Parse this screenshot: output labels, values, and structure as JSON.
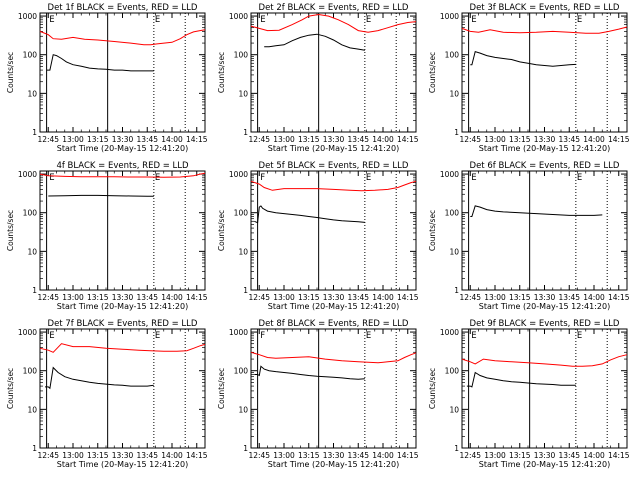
{
  "chart_data": [
    {
      "type": "line",
      "title": "Det 1f BLACK = Events, RED = LLD",
      "xlabel": "Start Time (20-May-15 12:41:20)",
      "ylabel": "Counts/sec",
      "x_ticks": [
        "12:45",
        "13:00",
        "13:15",
        "13:30",
        "13:45",
        "14:00",
        "14:15"
      ],
      "y_ticks": [
        "1",
        "10",
        "100",
        "1000"
      ],
      "yscale": "log",
      "xlim": [
        -5,
        95
      ],
      "ylim": [
        1,
        1200
      ],
      "markers": {
        "solid": [
          -1,
          36
        ],
        "dotted": [
          64,
          83
        ],
        "flags": [
          {
            "x": 0,
            "label": "E"
          },
          {
            "x": 64,
            "label": "E"
          }
        ]
      },
      "series": [
        {
          "color": "#ff0000",
          "x": [
            -5,
            0,
            3,
            8,
            15,
            22,
            30,
            40,
            50,
            58,
            62,
            66,
            75,
            80,
            84,
            88,
            92,
            95
          ],
          "y": [
            400,
            330,
            260,
            250,
            280,
            250,
            240,
            220,
            200,
            180,
            180,
            190,
            210,
            260,
            330,
            390,
            420,
            440
          ]
        },
        {
          "color": "#000000",
          "x": [
            -1,
            1,
            3,
            5,
            8,
            11,
            15,
            20,
            25,
            30,
            35,
            40,
            45,
            50,
            55,
            60,
            64
          ],
          "y": [
            40,
            40,
            100,
            95,
            80,
            65,
            55,
            50,
            45,
            43,
            42,
            40,
            40,
            38,
            38,
            38,
            38
          ]
        }
      ]
    },
    {
      "type": "line",
      "title": "Det 2f BLACK = Events, RED = LLD",
      "xlabel": "Start Time (20-May-15 12:41:20)",
      "ylabel": "Counts/sec",
      "x_ticks": [
        "12:45",
        "13:00",
        "13:15",
        "13:30",
        "13:45",
        "14:00",
        "14:15"
      ],
      "y_ticks": [
        "1",
        "10",
        "100",
        "1000"
      ],
      "yscale": "log",
      "xlim": [
        -5,
        95
      ],
      "ylim": [
        1,
        1200
      ],
      "markers": {
        "solid": [
          -1,
          36
        ],
        "dotted": [
          64,
          83
        ],
        "flags": [
          {
            "x": 0,
            "label": "E"
          },
          {
            "x": 64,
            "label": "E"
          }
        ]
      },
      "series": [
        {
          "color": "#ff0000",
          "x": [
            -5,
            0,
            5,
            12,
            20,
            26,
            30,
            36,
            42,
            48,
            54,
            60,
            66,
            72,
            78,
            84,
            90,
            95
          ],
          "y": [
            550,
            480,
            420,
            430,
            600,
            800,
            1000,
            1100,
            1000,
            800,
            600,
            420,
            380,
            420,
            500,
            600,
            680,
            720
          ]
        },
        {
          "color": "#000000",
          "x": [
            3,
            6,
            10,
            15,
            20,
            25,
            30,
            35,
            40,
            45,
            50,
            55,
            60,
            64
          ],
          "y": [
            160,
            160,
            170,
            180,
            230,
            280,
            320,
            340,
            300,
            240,
            180,
            150,
            140,
            130
          ]
        }
      ]
    },
    {
      "type": "line",
      "title": "Det 3f BLACK = Events, RED = LLD",
      "xlabel": "Start Time (20-May-15 12:41:20)",
      "ylabel": "Counts/sec",
      "x_ticks": [
        "12:45",
        "13:00",
        "13:15",
        "13:30",
        "13:45",
        "14:00",
        "14:15"
      ],
      "y_ticks": [
        "1",
        "10",
        "100",
        "1000"
      ],
      "yscale": "log",
      "xlim": [
        -5,
        95
      ],
      "ylim": [
        1,
        1200
      ],
      "markers": {
        "solid": [
          -1,
          36
        ],
        "dotted": [
          64,
          83
        ],
        "flags": [
          {
            "x": 0,
            "label": "E"
          },
          {
            "x": 64,
            "label": "E"
          }
        ]
      },
      "series": [
        {
          "color": "#ff0000",
          "x": [
            -5,
            0,
            5,
            12,
            20,
            30,
            40,
            50,
            60,
            70,
            78,
            84,
            90,
            95
          ],
          "y": [
            480,
            400,
            380,
            440,
            380,
            370,
            380,
            400,
            380,
            360,
            360,
            400,
            460,
            520
          ]
        },
        {
          "color": "#000000",
          "x": [
            0,
            1,
            3,
            6,
            10,
            15,
            20,
            25,
            30,
            35,
            40,
            50,
            60,
            64
          ],
          "y": [
            55,
            55,
            120,
            110,
            95,
            85,
            80,
            75,
            65,
            60,
            55,
            50,
            55,
            56
          ]
        }
      ]
    },
    {
      "type": "line",
      "title": "4f BLACK = Events, RED = LLD",
      "xlabel": "Start Time (20-May-15 12:41:20)",
      "ylabel": "Counts/sec",
      "x_ticks": [
        "12:45",
        "13:00",
        "13:15",
        "13:30",
        "13:45",
        "14:00",
        "14:15"
      ],
      "y_ticks": [
        "1",
        "10",
        "100",
        "1000"
      ],
      "yscale": "log",
      "xlim": [
        -5,
        95
      ],
      "ylim": [
        1,
        1200
      ],
      "markers": {
        "solid": [
          -1,
          36
        ],
        "dotted": [
          64,
          83
        ],
        "flags": [
          {
            "x": 0,
            "label": "E"
          },
          {
            "x": 64,
            "label": "E"
          }
        ]
      },
      "series": [
        {
          "color": "#ff0000",
          "x": [
            -5,
            0,
            10,
            20,
            30,
            40,
            50,
            60,
            70,
            80,
            88,
            92,
            95
          ],
          "y": [
            1000,
            900,
            870,
            850,
            850,
            850,
            840,
            840,
            830,
            840,
            900,
            1000,
            1050
          ]
        },
        {
          "color": "#000000",
          "x": [
            0,
            10,
            20,
            30,
            40,
            50,
            60,
            64
          ],
          "y": [
            270,
            275,
            280,
            280,
            275,
            270,
            265,
            265
          ]
        }
      ]
    },
    {
      "type": "line",
      "title": "Det 5f BLACK = Events, RED = LLD",
      "xlabel": "Start Time (20-May-15 12:41:20)",
      "ylabel": "Counts/sec",
      "x_ticks": [
        "12:45",
        "13:00",
        "13:15",
        "13:30",
        "13:45",
        "14:00",
        "14:15"
      ],
      "y_ticks": [
        "1",
        "10",
        "100",
        "1000"
      ],
      "yscale": "log",
      "xlim": [
        -5,
        95
      ],
      "ylim": [
        1,
        1200
      ],
      "markers": {
        "solid": [
          -1,
          36
        ],
        "dotted": [
          64,
          83
        ],
        "flags": [
          {
            "x": 0,
            "label": "F"
          },
          {
            "x": 64,
            "label": "E"
          }
        ]
      },
      "series": [
        {
          "color": "#ff0000",
          "x": [
            -5,
            0,
            3,
            8,
            15,
            25,
            35,
            45,
            55,
            62,
            70,
            78,
            84,
            88,
            92,
            95
          ],
          "y": [
            650,
            550,
            450,
            380,
            420,
            420,
            420,
            400,
            380,
            370,
            380,
            400,
            450,
            520,
            600,
            650
          ]
        },
        {
          "color": "#000000",
          "x": [
            -3,
            -1,
            0,
            1,
            2,
            5,
            10,
            15,
            20,
            25,
            30,
            35,
            40,
            45,
            50,
            55,
            60,
            64
          ],
          "y": [
            60,
            55,
            140,
            150,
            130,
            110,
            100,
            95,
            90,
            85,
            80,
            75,
            70,
            65,
            62,
            60,
            58,
            56
          ]
        }
      ]
    },
    {
      "type": "line",
      "title": "Det 6f BLACK = Events, RED = LLD",
      "xlabel": "Start Time (20-May-15 12:41:20)",
      "ylabel": "Counts/sec",
      "x_ticks": [
        "12:45",
        "13:00",
        "13:15",
        "13:30",
        "13:45",
        "14:00",
        "14:15"
      ],
      "y_ticks": [
        "1",
        "10",
        "100",
        "1000"
      ],
      "yscale": "log",
      "xlim": [
        -5,
        95
      ],
      "ylim": [
        1,
        1200
      ],
      "markers": {
        "solid": [
          -1,
          36
        ],
        "dotted": [
          64,
          83
        ],
        "flags": [
          {
            "x": 0,
            "label": "E"
          },
          {
            "x": 64,
            "label": "E"
          }
        ]
      },
      "series": [
        {
          "color": "#000000",
          "x": [
            0,
            1,
            3,
            6,
            10,
            15,
            20,
            30,
            40,
            50,
            60,
            66,
            70,
            75,
            80
          ],
          "y": [
            80,
            80,
            150,
            140,
            120,
            110,
            105,
            100,
            95,
            90,
            85,
            85,
            85,
            85,
            88
          ]
        }
      ]
    },
    {
      "type": "line",
      "title": "Det 7f BLACK = Events, RED = LLD",
      "xlabel": "Start Time (20-May-15 12:41:20)",
      "ylabel": "Counts/sec",
      "x_ticks": [
        "12:45",
        "13:00",
        "13:15",
        "13:30",
        "13:45",
        "14:00",
        "14:15"
      ],
      "y_ticks": [
        "1",
        "10",
        "100",
        "1000"
      ],
      "yscale": "log",
      "xlim": [
        -5,
        95
      ],
      "ylim": [
        1,
        1200
      ],
      "markers": {
        "solid": [
          -1,
          36
        ],
        "dotted": [
          64,
          83
        ],
        "flags": [
          {
            "x": 0,
            "label": "E"
          },
          {
            "x": 64,
            "label": "E"
          }
        ]
      },
      "series": [
        {
          "color": "#ff0000",
          "x": [
            -5,
            0,
            3,
            8,
            15,
            25,
            35,
            45,
            55,
            62,
            70,
            78,
            84,
            88,
            92,
            95
          ],
          "y": [
            380,
            340,
            300,
            500,
            420,
            420,
            380,
            360,
            340,
            330,
            320,
            320,
            330,
            380,
            440,
            480
          ]
        },
        {
          "color": "#000000",
          "x": [
            -2,
            0,
            1,
            3,
            6,
            10,
            15,
            20,
            25,
            30,
            35,
            40,
            45,
            50,
            55,
            60,
            64
          ],
          "y": [
            38,
            38,
            35,
            120,
            90,
            70,
            60,
            55,
            50,
            47,
            45,
            43,
            42,
            40,
            40,
            40,
            42
          ]
        }
      ]
    },
    {
      "type": "line",
      "title": "Det 8f BLACK = Events, RED = LLD",
      "xlabel": "Start Time (20-May-15 12:41:20)",
      "ylabel": "Counts/sec",
      "x_ticks": [
        "12:45",
        "13:00",
        "13:15",
        "13:30",
        "13:45",
        "14:00",
        "14:15"
      ],
      "y_ticks": [
        "1",
        "10",
        "100",
        "1000"
      ],
      "yscale": "log",
      "xlim": [
        -5,
        95
      ],
      "ylim": [
        1,
        1200
      ],
      "markers": {
        "solid": [
          -1,
          36
        ],
        "dotted": [
          64,
          83
        ],
        "flags": [
          {
            "x": 0,
            "label": "F"
          },
          {
            "x": 64,
            "label": "E"
          }
        ]
      },
      "series": [
        {
          "color": "#ff0000",
          "x": [
            -5,
            0,
            5,
            10,
            20,
            30,
            40,
            50,
            60,
            66,
            72,
            78,
            84,
            88,
            92,
            95
          ],
          "y": [
            300,
            260,
            220,
            210,
            220,
            230,
            200,
            180,
            170,
            165,
            160,
            170,
            180,
            220,
            260,
            290
          ]
        },
        {
          "color": "#000000",
          "x": [
            -3,
            -1,
            0,
            1,
            3,
            6,
            10,
            15,
            20,
            25,
            30,
            35,
            40,
            45,
            50,
            55,
            60,
            64
          ],
          "y": [
            80,
            80,
            75,
            130,
            110,
            100,
            95,
            90,
            85,
            80,
            75,
            72,
            70,
            68,
            65,
            62,
            60,
            62
          ]
        }
      ]
    },
    {
      "type": "line",
      "title": "Det 9f BLACK = Events, RED = LLD",
      "xlabel": "Start Time (20-May-15 12:41:20)",
      "ylabel": "Counts/sec",
      "x_ticks": [
        "12:45",
        "13:00",
        "13:15",
        "13:30",
        "13:45",
        "14:00",
        "14:15"
      ],
      "y_ticks": [
        "1",
        "10",
        "100",
        "1000"
      ],
      "yscale": "log",
      "xlim": [
        -5,
        95
      ],
      "ylim": [
        1,
        1200
      ],
      "markers": {
        "solid": [
          -1,
          36
        ],
        "dotted": [
          64,
          83
        ],
        "flags": [
          {
            "x": 0,
            "label": "E"
          },
          {
            "x": 64,
            "label": "E"
          }
        ]
      },
      "series": [
        {
          "color": "#ff0000",
          "x": [
            -5,
            0,
            3,
            8,
            15,
            25,
            35,
            45,
            55,
            62,
            68,
            74,
            80,
            85,
            90,
            95
          ],
          "y": [
            200,
            170,
            150,
            200,
            180,
            170,
            160,
            150,
            140,
            130,
            130,
            135,
            150,
            190,
            230,
            260
          ]
        },
        {
          "color": "#000000",
          "x": [
            -2,
            0,
            1,
            3,
            6,
            10,
            15,
            20,
            25,
            30,
            35,
            40,
            45,
            50,
            55,
            60,
            64
          ],
          "y": [
            40,
            40,
            38,
            90,
            75,
            65,
            60,
            55,
            52,
            50,
            48,
            46,
            45,
            44,
            42,
            42,
            42
          ]
        }
      ]
    }
  ]
}
